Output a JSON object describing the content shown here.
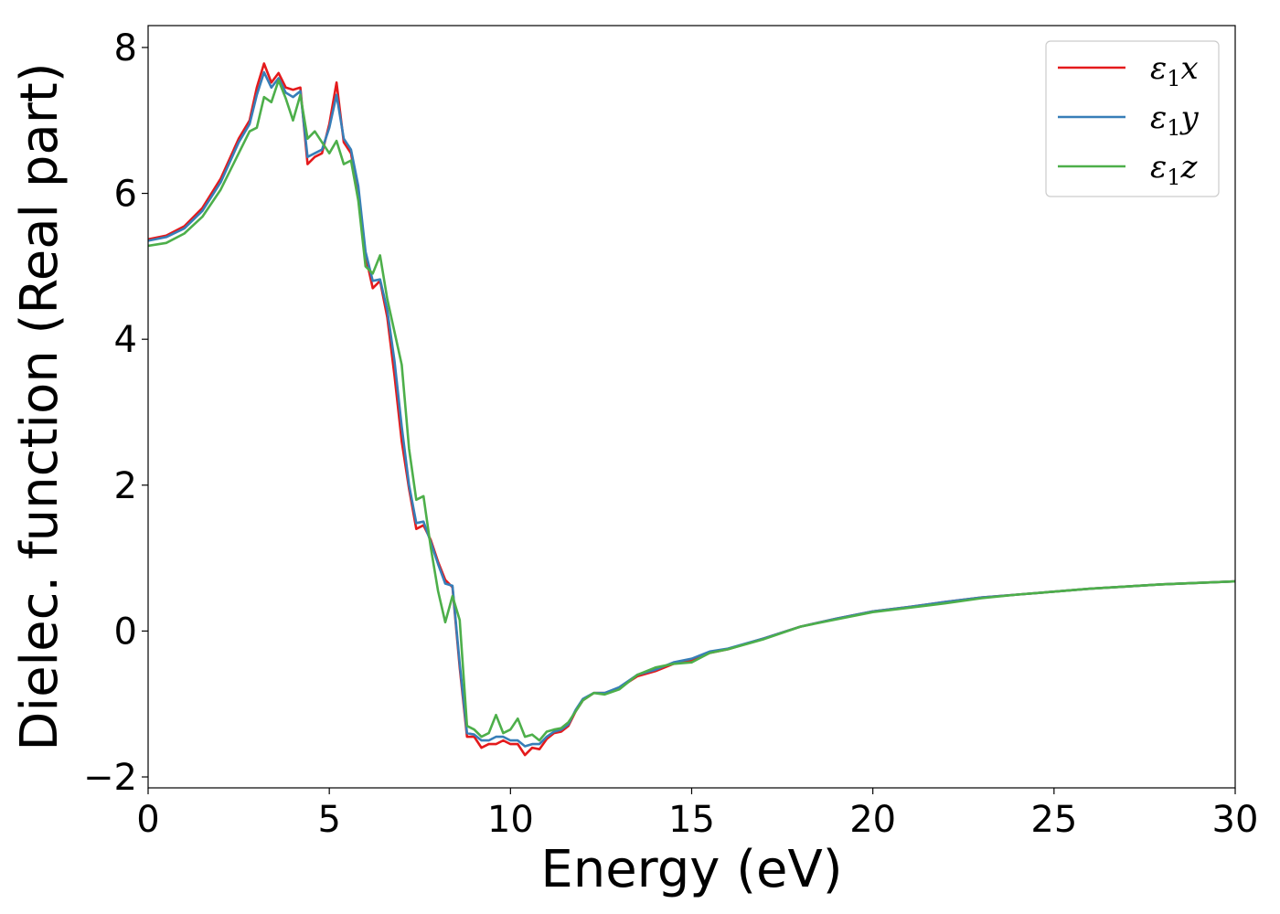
{
  "chart_data": {
    "type": "line",
    "title": "",
    "xlabel": "Energy (eV)",
    "ylabel": "Dielec. function (Real part)",
    "xlim": [
      0,
      30
    ],
    "ylim": [
      -2.15,
      8.3
    ],
    "xticks": [
      0,
      5,
      10,
      15,
      20,
      25,
      30
    ],
    "xtick_labels": [
      "0",
      "5",
      "10",
      "15",
      "20",
      "25",
      "30"
    ],
    "yticks": [
      -2,
      0,
      2,
      4,
      6,
      8
    ],
    "ytick_labels": [
      "−2",
      "0",
      "2",
      "4",
      "6",
      "8"
    ],
    "grid": false,
    "legend_position": "top-right",
    "series": [
      {
        "name": "ε₁x",
        "legend_base": "ε",
        "legend_sub": "1",
        "legend_var": "x",
        "color": "#e41a1c",
        "x": [
          0,
          0.5,
          1,
          1.5,
          2,
          2.5,
          2.8,
          3.0,
          3.2,
          3.4,
          3.6,
          3.8,
          4.0,
          4.2,
          4.4,
          4.6,
          4.8,
          5.0,
          5.2,
          5.4,
          5.6,
          5.8,
          6.0,
          6.2,
          6.4,
          6.6,
          6.8,
          7.0,
          7.2,
          7.4,
          7.6,
          7.8,
          8.0,
          8.2,
          8.4,
          8.6,
          8.8,
          9.0,
          9.2,
          9.4,
          9.6,
          9.8,
          10.0,
          10.2,
          10.4,
          10.6,
          10.8,
          11.0,
          11.2,
          11.4,
          11.6,
          11.8,
          12.0,
          12.3,
          12.6,
          13.0,
          13.5,
          14.0,
          14.5,
          15.0,
          15.5,
          16.0,
          17.0,
          18.0,
          19.0,
          20.0,
          21.0,
          22.0,
          23.0,
          24.0,
          25.0,
          26.0,
          27.0,
          28.0,
          29.0,
          30.0
        ],
        "y": [
          5.37,
          5.42,
          5.55,
          5.8,
          6.2,
          6.75,
          7.0,
          7.45,
          7.78,
          7.52,
          7.65,
          7.45,
          7.42,
          7.45,
          6.4,
          6.5,
          6.55,
          6.95,
          7.52,
          6.7,
          6.55,
          6.0,
          5.15,
          4.7,
          4.8,
          4.3,
          3.5,
          2.6,
          1.95,
          1.4,
          1.45,
          1.25,
          0.95,
          0.7,
          0.6,
          -0.5,
          -1.45,
          -1.45,
          -1.6,
          -1.55,
          -1.55,
          -1.5,
          -1.55,
          -1.55,
          -1.7,
          -1.6,
          -1.62,
          -1.48,
          -1.4,
          -1.38,
          -1.3,
          -1.1,
          -0.95,
          -0.85,
          -0.85,
          -0.78,
          -0.62,
          -0.55,
          -0.45,
          -0.4,
          -0.3,
          -0.25,
          -0.1,
          0.06,
          0.17,
          0.27,
          0.33,
          0.4,
          0.46,
          0.5,
          0.54,
          0.58,
          0.61,
          0.64,
          0.66,
          0.68
        ]
      },
      {
        "name": "ε₁y",
        "legend_base": "ε",
        "legend_sub": "1",
        "legend_var": "y",
        "color": "#377eb8",
        "x": [
          0,
          0.5,
          1,
          1.5,
          2,
          2.5,
          2.8,
          3.0,
          3.2,
          3.4,
          3.6,
          3.8,
          4.0,
          4.2,
          4.4,
          4.6,
          4.8,
          5.0,
          5.2,
          5.4,
          5.6,
          5.8,
          6.0,
          6.2,
          6.4,
          6.6,
          6.8,
          7.0,
          7.2,
          7.4,
          7.6,
          7.8,
          8.0,
          8.2,
          8.4,
          8.6,
          8.8,
          9.0,
          9.2,
          9.4,
          9.6,
          9.8,
          10.0,
          10.2,
          10.4,
          10.6,
          10.8,
          11.0,
          11.2,
          11.4,
          11.6,
          11.8,
          12.0,
          12.3,
          12.6,
          13.0,
          13.5,
          14.0,
          14.5,
          15.0,
          15.5,
          16.0,
          17.0,
          18.0,
          19.0,
          20.0,
          21.0,
          22.0,
          23.0,
          24.0,
          25.0,
          26.0,
          27.0,
          28.0,
          29.0,
          30.0
        ],
        "y": [
          5.35,
          5.4,
          5.52,
          5.76,
          6.15,
          6.7,
          6.95,
          7.35,
          7.66,
          7.45,
          7.58,
          7.38,
          7.32,
          7.4,
          6.5,
          6.55,
          6.6,
          6.9,
          7.35,
          6.75,
          6.6,
          6.1,
          5.2,
          4.8,
          4.82,
          4.4,
          3.7,
          2.8,
          2.0,
          1.48,
          1.5,
          1.22,
          0.92,
          0.65,
          0.62,
          -0.45,
          -1.4,
          -1.42,
          -1.5,
          -1.5,
          -1.45,
          -1.45,
          -1.5,
          -1.5,
          -1.58,
          -1.55,
          -1.55,
          -1.45,
          -1.38,
          -1.35,
          -1.28,
          -1.08,
          -0.93,
          -0.85,
          -0.85,
          -0.77,
          -0.6,
          -0.53,
          -0.43,
          -0.38,
          -0.28,
          -0.24,
          -0.1,
          0.06,
          0.17,
          0.27,
          0.33,
          0.4,
          0.46,
          0.5,
          0.54,
          0.58,
          0.61,
          0.64,
          0.66,
          0.68
        ]
      },
      {
        "name": "ε₁z",
        "legend_base": "ε",
        "legend_sub": "1",
        "legend_var": "z",
        "color": "#4daf4a",
        "x": [
          0,
          0.5,
          1,
          1.5,
          2,
          2.5,
          2.8,
          3.0,
          3.2,
          3.4,
          3.6,
          3.8,
          4.0,
          4.2,
          4.4,
          4.6,
          4.8,
          5.0,
          5.2,
          5.4,
          5.6,
          5.8,
          6.0,
          6.2,
          6.4,
          6.6,
          6.8,
          7.0,
          7.2,
          7.4,
          7.6,
          7.8,
          8.0,
          8.2,
          8.4,
          8.6,
          8.8,
          9.0,
          9.2,
          9.4,
          9.6,
          9.8,
          10.0,
          10.2,
          10.4,
          10.6,
          10.8,
          11.0,
          11.2,
          11.4,
          11.6,
          11.8,
          12.0,
          12.3,
          12.6,
          13.0,
          13.5,
          14.0,
          14.5,
          15.0,
          15.5,
          16.0,
          17.0,
          18.0,
          19.0,
          20.0,
          21.0,
          22.0,
          23.0,
          24.0,
          25.0,
          26.0,
          27.0,
          28.0,
          29.0,
          30.0
        ],
        "y": [
          5.28,
          5.32,
          5.45,
          5.68,
          6.05,
          6.55,
          6.85,
          6.9,
          7.32,
          7.25,
          7.55,
          7.3,
          7.0,
          7.35,
          6.75,
          6.85,
          6.7,
          6.55,
          6.72,
          6.4,
          6.45,
          5.9,
          5.0,
          4.9,
          5.15,
          4.55,
          4.1,
          3.65,
          2.5,
          1.8,
          1.85,
          1.15,
          0.55,
          0.12,
          0.48,
          0.15,
          -1.3,
          -1.35,
          -1.45,
          -1.4,
          -1.15,
          -1.4,
          -1.35,
          -1.2,
          -1.45,
          -1.42,
          -1.5,
          -1.38,
          -1.35,
          -1.33,
          -1.25,
          -1.1,
          -0.95,
          -0.85,
          -0.87,
          -0.8,
          -0.6,
          -0.5,
          -0.45,
          -0.43,
          -0.3,
          -0.25,
          -0.11,
          0.06,
          0.16,
          0.26,
          0.32,
          0.38,
          0.45,
          0.5,
          0.54,
          0.58,
          0.61,
          0.64,
          0.66,
          0.68
        ]
      }
    ]
  }
}
